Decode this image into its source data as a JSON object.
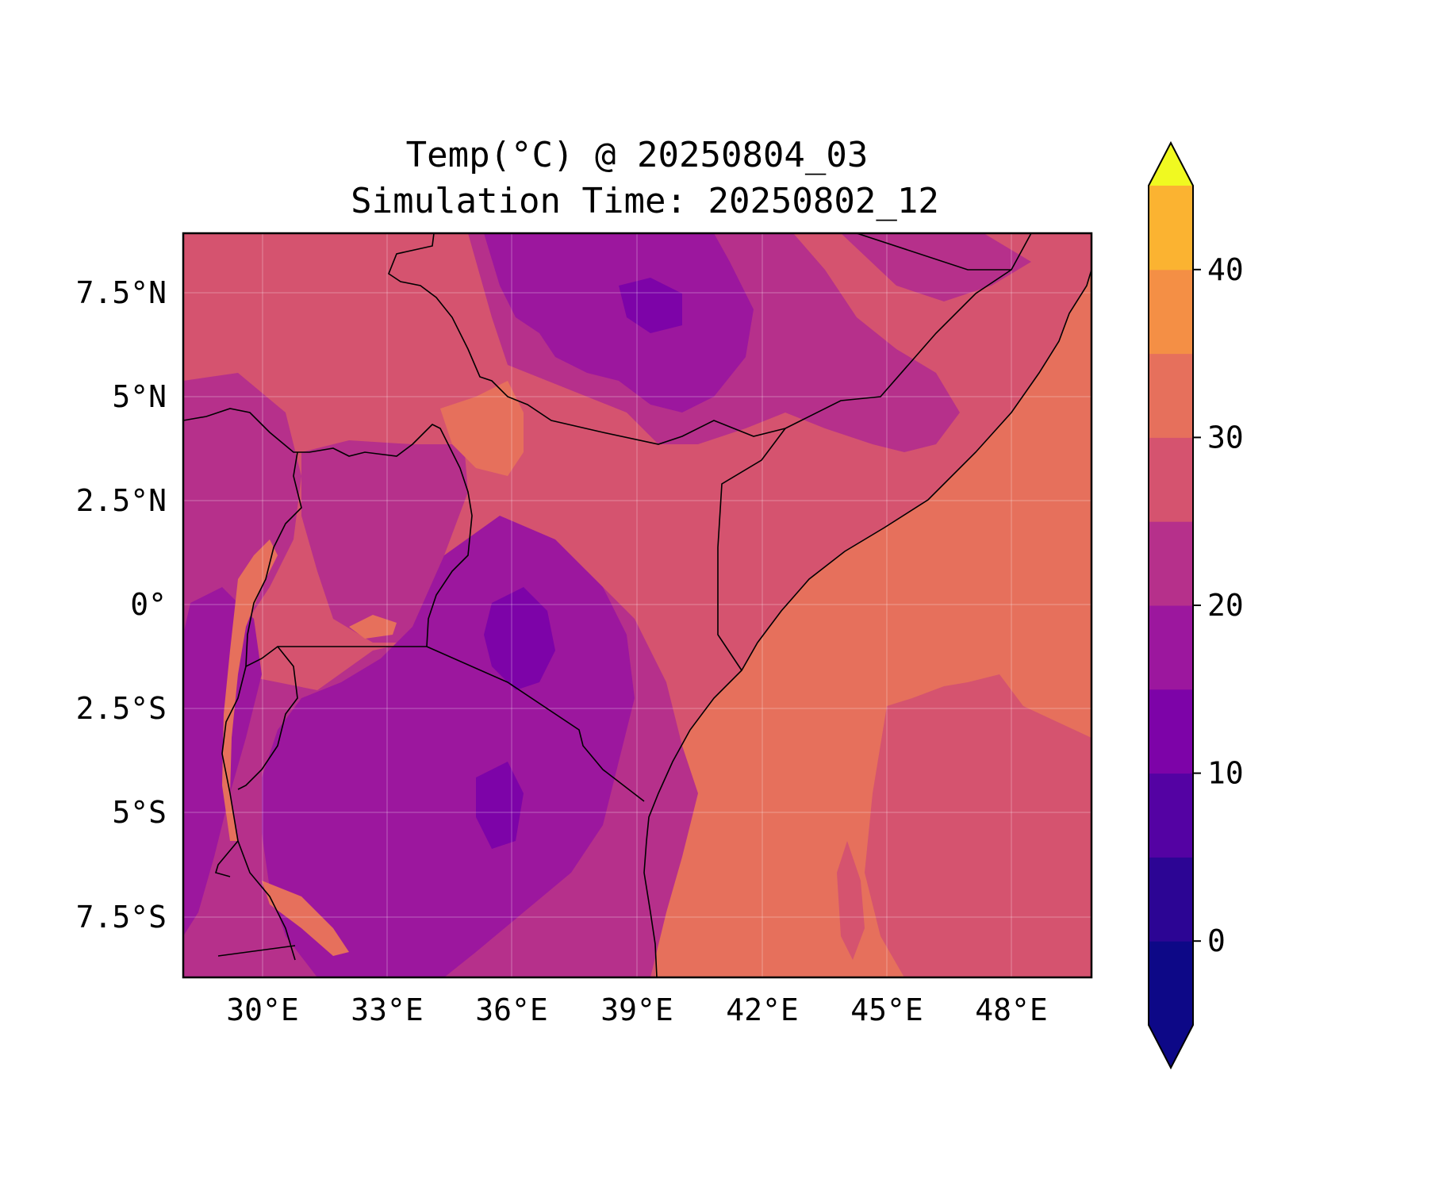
{
  "title": {
    "line1": "Temp(°C) @ 20250804_03",
    "line2": "Simulation Time: 20250802_12"
  },
  "map": {
    "region": "East Africa",
    "lon_range": [
      28,
      50
    ],
    "lat_range": [
      -9,
      9
    ],
    "gridlines": true,
    "borders": true,
    "coastlines": true,
    "lon_tick_labels": [
      "30°E",
      "33°E",
      "36°E",
      "39°E",
      "42°E",
      "45°E",
      "48°E"
    ],
    "lat_tick_labels": [
      "7.5°N",
      "5°N",
      "2.5°N",
      "0°",
      "2.5°S",
      "5°S",
      "7.5°S"
    ]
  },
  "chart_data": {
    "type": "heatmap",
    "variable": "Temp(°C)",
    "x_ticks": [
      30,
      33,
      36,
      39,
      42,
      45,
      48
    ],
    "y_ticks": [
      7.5,
      5,
      2.5,
      0,
      -2.5,
      -5,
      -7.5
    ],
    "colorbar": {
      "levels": [
        -5,
        0,
        5,
        10,
        15,
        20,
        25,
        30,
        35,
        40,
        45
      ],
      "tick_values": [
        0,
        10,
        20,
        30,
        40
      ],
      "tick_labels": [
        "0",
        "10",
        "20",
        "30",
        "40"
      ],
      "extend": "both",
      "colors": [
        "#0d0887",
        "#2c0594",
        "#5402a3",
        "#7d03a8",
        "#9c179e",
        "#b6308b",
        "#d5536f",
        "#e6705c",
        "#f48f45",
        "#fbb331",
        "#f2e52d"
      ],
      "extend_low_color": "#0d0887",
      "extend_high_color": "#f0f921"
    }
  }
}
